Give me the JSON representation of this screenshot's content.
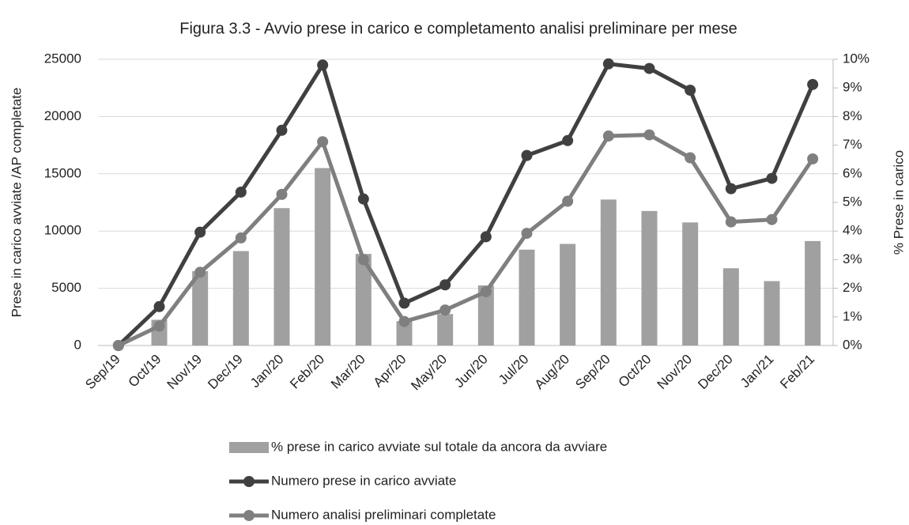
{
  "chart_data": {
    "type": "combo",
    "title": "Figura 3.3 - Avvio prese in carico e completamento analisi preliminare per mese",
    "ylabel": "Prese in carico avviate /AP completate",
    "y2label": "% Prese in carico",
    "categories": [
      "Sep/19",
      "Oct/19",
      "Nov/19",
      "Dec/19",
      "Jan/20",
      "Feb/20",
      "Mar/20",
      "Apr/20",
      "May/20",
      "Jun/20",
      "Jul/20",
      "Aug/20",
      "Sep/20",
      "Oct/20",
      "Nov/20",
      "Dec/20",
      "Jan/21",
      "Feb/21"
    ],
    "series": [
      {
        "name": "%  prese in carico avviate sul totale da ancora da avviare",
        "type": "bar",
        "axis": "y2",
        "color": "#a0a0a0",
        "values": [
          0,
          0.9,
          2.6,
          3.3,
          4.8,
          6.2,
          3.2,
          0.85,
          1.1,
          2.1,
          3.35,
          3.55,
          5.1,
          4.7,
          4.3,
          2.7,
          2.25,
          3.65
        ]
      },
      {
        "name": "Numero prese in carico avviate",
        "type": "line",
        "color": "#404040",
        "values": [
          0,
          3400,
          9900,
          13400,
          18800,
          24500,
          12800,
          3700,
          5300,
          9500,
          16600,
          17900,
          24600,
          24200,
          22300,
          13700,
          14600,
          22800
        ]
      },
      {
        "name": "Numero analisi preliminari completate",
        "type": "line",
        "color": "#7f7f7f",
        "values": [
          0,
          1700,
          6400,
          9400,
          13200,
          17800,
          7500,
          2100,
          3100,
          4700,
          9800,
          12600,
          18300,
          18400,
          16400,
          10800,
          11000,
          16300
        ]
      }
    ],
    "ylim": [
      0,
      25000
    ],
    "yticks": [
      0,
      5000,
      10000,
      15000,
      20000,
      25000
    ],
    "y2lim": [
      0,
      10
    ],
    "y2ticks": [
      {
        "value": 0,
        "label": "0%"
      },
      {
        "value": 1,
        "label": "1%"
      },
      {
        "value": 2,
        "label": "2%"
      },
      {
        "value": 3,
        "label": "3%"
      },
      {
        "value": 4,
        "label": "4%"
      },
      {
        "value": 5,
        "label": "5%"
      },
      {
        "value": 6,
        "label": "6%"
      },
      {
        "value": 7,
        "label": "7%"
      },
      {
        "value": 8,
        "label": "8%"
      },
      {
        "value": 9,
        "label": "9%"
      },
      {
        "value": 10,
        "label": "10%"
      }
    ],
    "grid": true
  }
}
